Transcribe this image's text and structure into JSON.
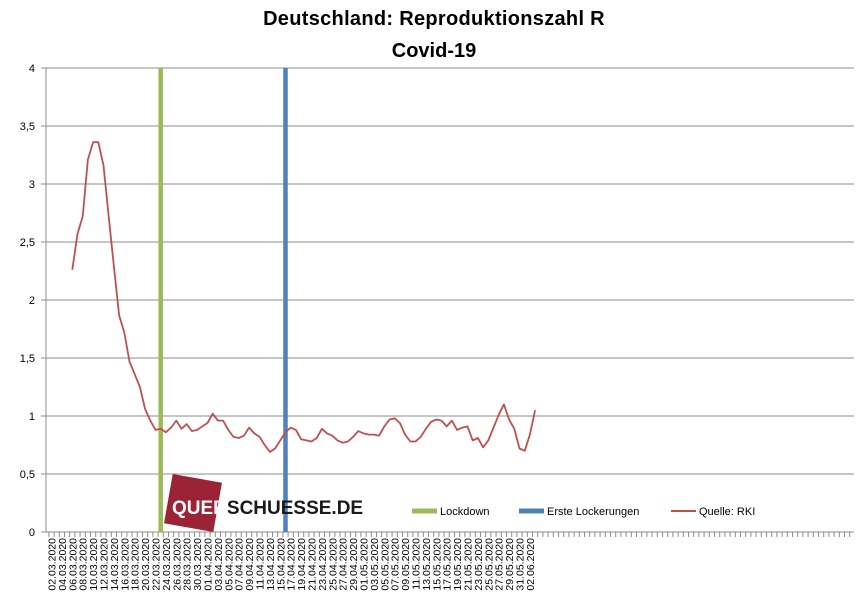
{
  "chart_data": {
    "type": "line",
    "title": "Deutschland:  Reproduktionszahl  R",
    "subtitle": "Covid-19",
    "ylim": [
      0,
      4
    ],
    "yticks": [
      "0",
      "0,5",
      "1",
      "1,5",
      "2",
      "2,5",
      "3",
      "3,5",
      "4"
    ],
    "ytick_values": [
      0,
      0.5,
      1,
      1.5,
      2,
      2.5,
      3,
      3.5,
      4
    ],
    "grid": true,
    "legend_position": "bottom-center",
    "x_start_date": "02.03.2020",
    "x_tick_labels": [
      "02.03.2020",
      "04.03.2020",
      "06.03.2020",
      "08.03.2020",
      "10.03.2020",
      "12.03.2020",
      "14.03.2020",
      "16.03.2020",
      "18.03.2020",
      "20.03.2020",
      "22.03.2020",
      "24.03.2020",
      "26.03.2020",
      "28.03.2020",
      "30.03.2020",
      "01.04.2020",
      "03.04.2020",
      "05.04.2020",
      "07.04.2020",
      "09.04.2020",
      "11.04.2020",
      "13.04.2020",
      "15.04.2020",
      "17.04.2020",
      "19.04.2020",
      "21.04.2020",
      "23.04.2020",
      "25.04.2020",
      "27.04.2020",
      "29.04.2020",
      "01.05.2020",
      "03.05.2020",
      "05.05.2020",
      "07.05.2020",
      "09.05.2020",
      "11.05.2020",
      "13.05.2020",
      "15.05.2020",
      "17.05.2020",
      "19.05.2020",
      "21.05.2020",
      "23.05.2020",
      "25.05.2020",
      "27.05.2020",
      "29.05.2020",
      "31.05.2020",
      "02.06.2020"
    ],
    "series": [
      {
        "name": "Quelle: RKI",
        "color": "#c0504d",
        "start_date": "06.03.2020",
        "values": [
          2.26,
          2.57,
          2.72,
          3.21,
          3.36,
          3.36,
          3.16,
          2.72,
          2.29,
          1.87,
          1.72,
          1.47,
          1.36,
          1.25,
          1.06,
          0.96,
          0.88,
          0.89,
          0.86,
          0.9,
          0.96,
          0.89,
          0.93,
          0.87,
          0.88,
          0.91,
          0.94,
          1.02,
          0.96,
          0.96,
          0.88,
          0.82,
          0.81,
          0.83,
          0.9,
          0.85,
          0.82,
          0.75,
          0.69,
          0.72,
          0.79,
          0.86,
          0.9,
          0.88,
          0.8,
          0.79,
          0.78,
          0.81,
          0.89,
          0.85,
          0.83,
          0.79,
          0.77,
          0.78,
          0.82,
          0.87,
          0.85,
          0.84,
          0.84,
          0.83,
          0.91,
          0.97,
          0.98,
          0.94,
          0.84,
          0.78,
          0.78,
          0.82,
          0.89,
          0.95,
          0.97,
          0.96,
          0.91,
          0.96,
          0.88,
          0.9,
          0.91,
          0.79,
          0.81,
          0.73,
          0.79,
          0.9,
          1.01,
          1.1,
          0.97,
          0.89,
          0.72,
          0.7,
          0.84,
          1.05
        ]
      },
      {
        "name": "Lockdown",
        "type": "vline",
        "color": "#9bbb59",
        "x": "23.03.2020"
      },
      {
        "name": "Erste Lockerungen",
        "type": "vline",
        "color": "#4f81bd",
        "x": "16.04.2020"
      }
    ]
  },
  "watermark": {
    "text_accent": "QUER",
    "text_rest": "SCHUESSE.DE",
    "color": "#9b2335"
  }
}
